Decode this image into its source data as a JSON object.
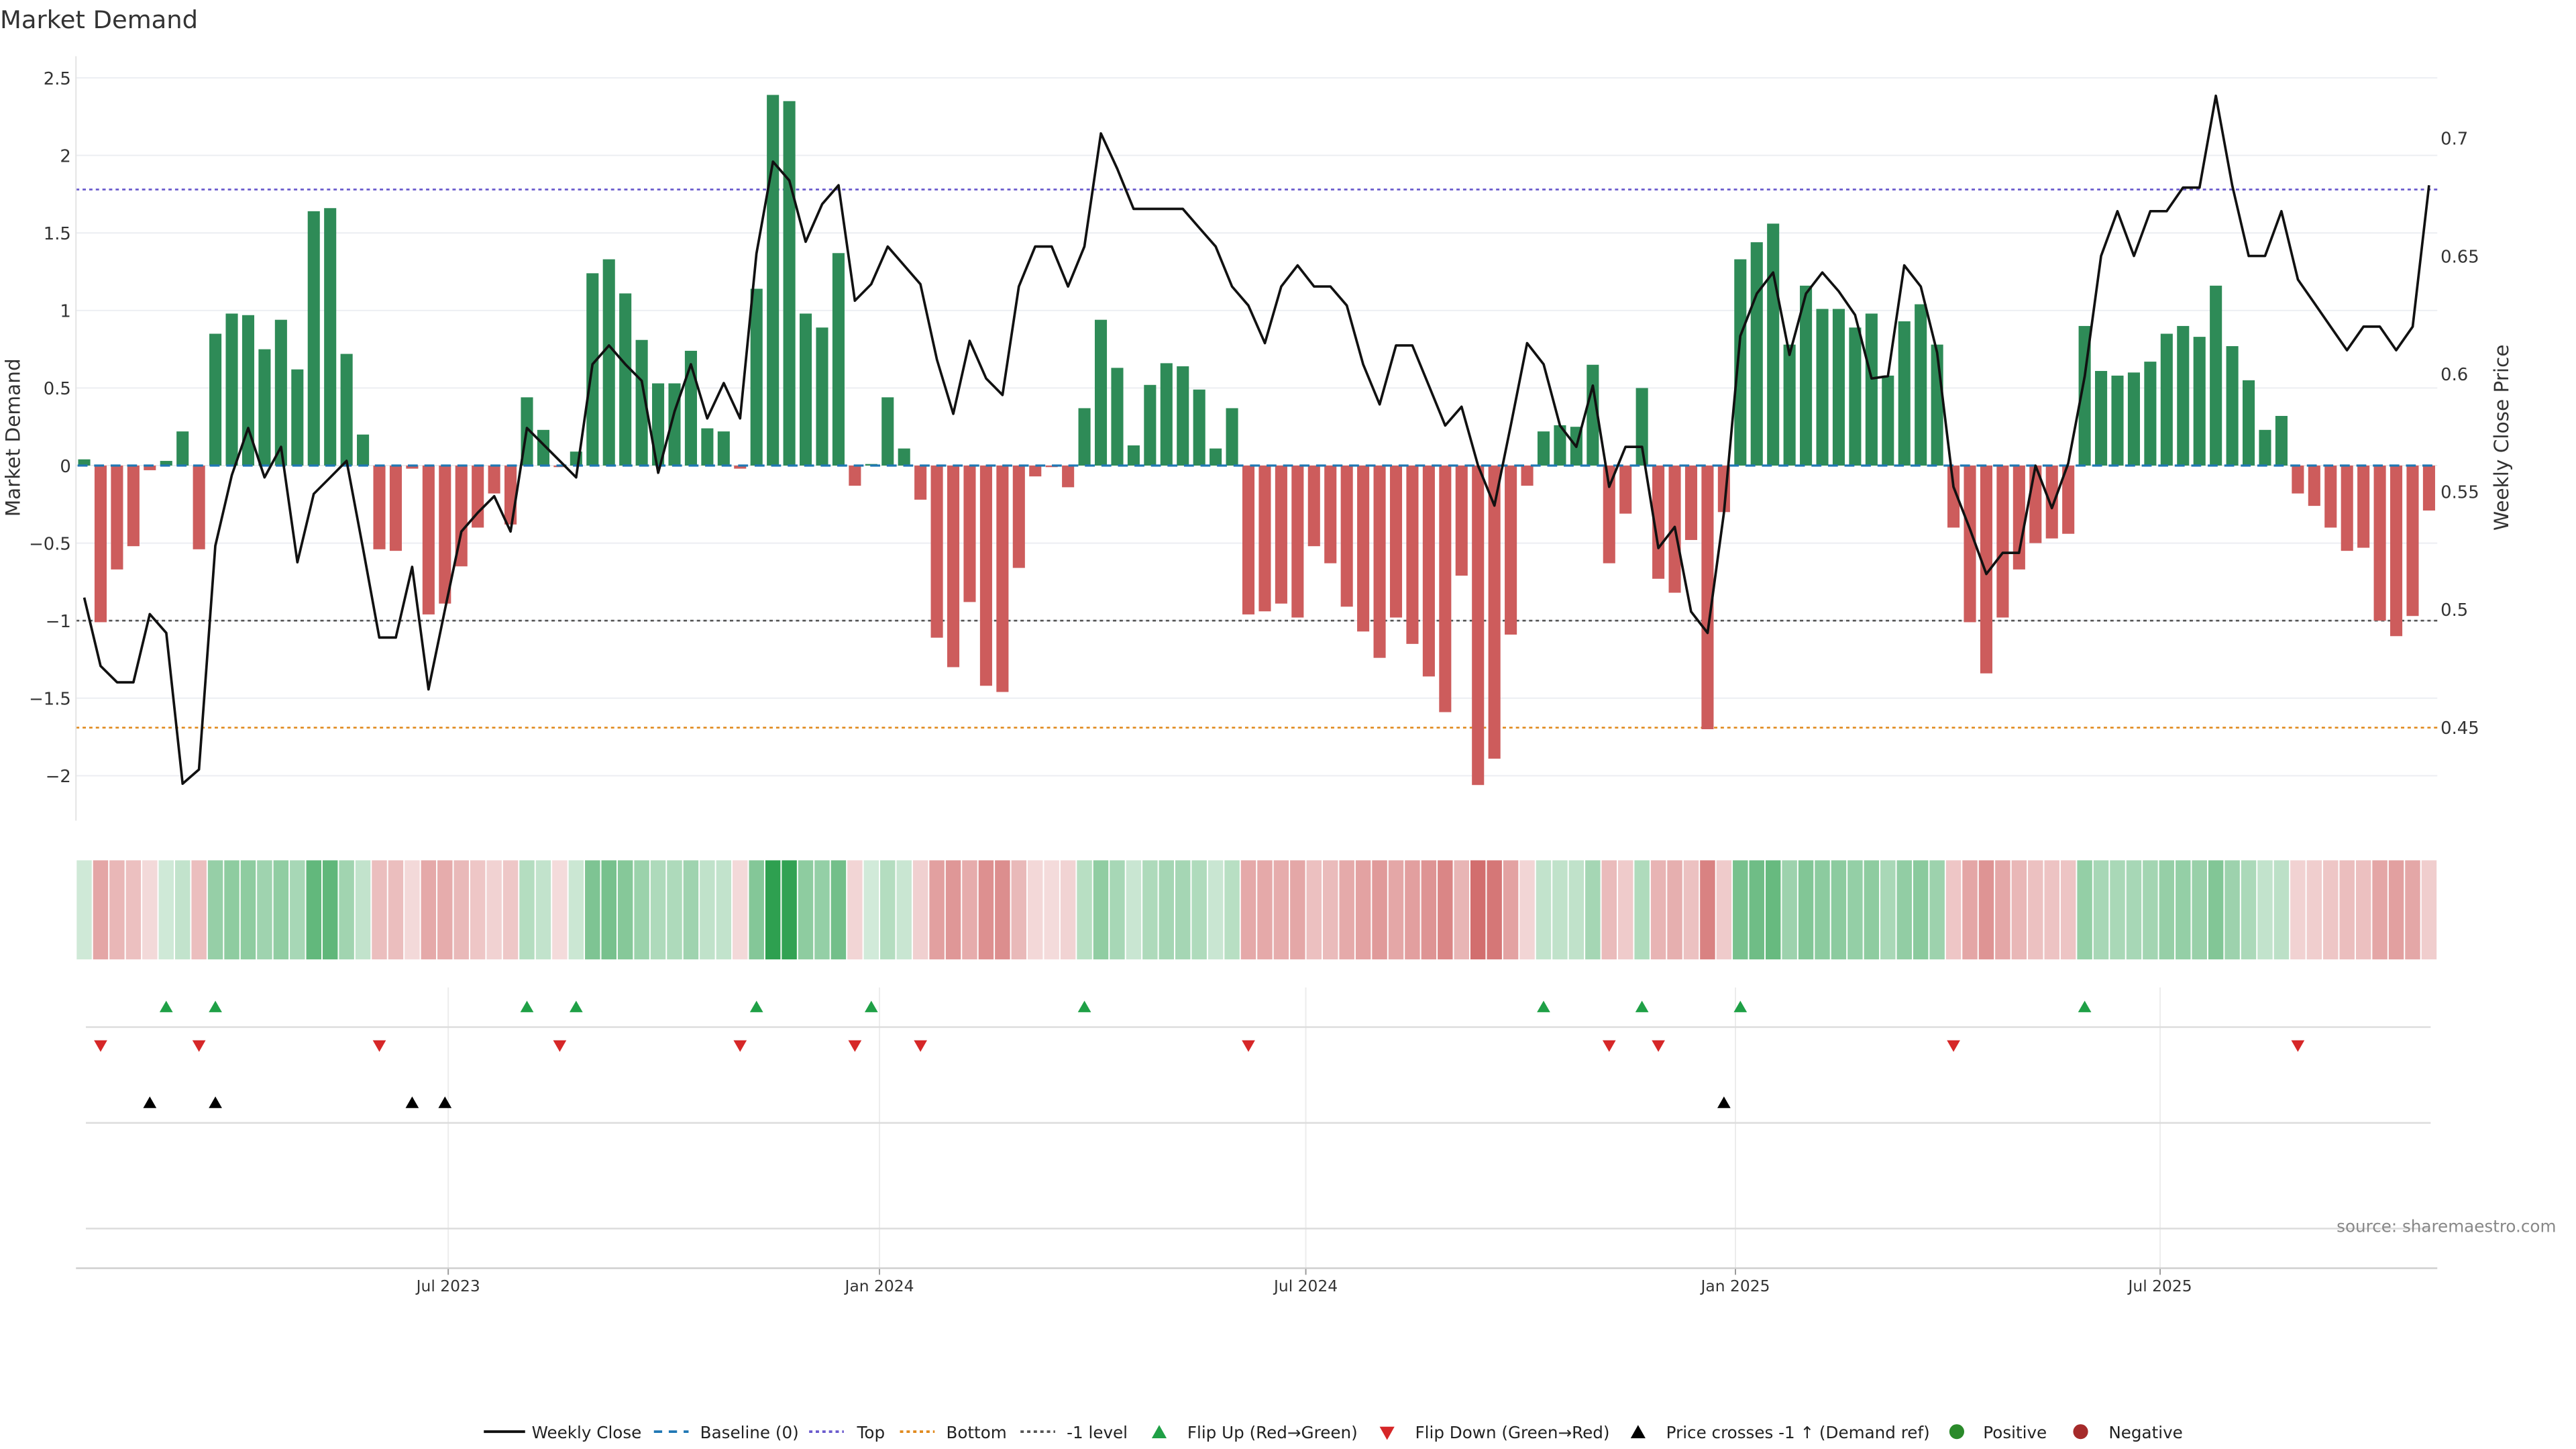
{
  "chart_data": {
    "type": "bar",
    "title": "Market Demand",
    "ylabel": "Market Demand",
    "y2label": "Weekly Close Price",
    "ylim": [
      -2.29,
      2.64
    ],
    "y2lim": [
      0.4103,
      0.7348
    ],
    "yticks": [
      -2,
      -1.5,
      -1,
      -0.5,
      0,
      0.5,
      1,
      1.5,
      2,
      2.5
    ],
    "ytick_labels": [
      "−2",
      "−1.5",
      "−1",
      "−0.5",
      "0",
      "0.5",
      "1",
      "1.5",
      "2",
      "2.5"
    ],
    "y2ticks": [
      0.45,
      0.5,
      0.55,
      0.6,
      0.65,
      0.7
    ],
    "y2tick_labels": [
      "0.45",
      "0.5",
      "0.55",
      "0.6",
      "0.65",
      "0.7"
    ],
    "x_unit": "week index (weekly bars, ~Feb 2023 to Oct 2025)",
    "xticks": [
      {
        "week": 22.2,
        "label": "Jul 2023"
      },
      {
        "week": 48.5,
        "label": "Jan 2024"
      },
      {
        "week": 74.5,
        "label": "Jul 2024"
      },
      {
        "week": 100.7,
        "label": "Jan 2025"
      },
      {
        "week": 126.6,
        "label": "Jul 2025"
      }
    ],
    "grid": true,
    "legend_placement": "bottom-center",
    "reference_lines": {
      "baseline": 0,
      "top": 1.78,
      "bottom": -1.69,
      "minus1": -1
    },
    "series": [
      {
        "name": "Market Demand",
        "type": "bar",
        "axis": "left",
        "values": [
          0.04,
          -1.01,
          -0.67,
          -0.52,
          -0.03,
          0.03,
          0.22,
          -0.54,
          0.85,
          0.98,
          0.97,
          0.75,
          0.94,
          0.62,
          1.64,
          1.66,
          0.72,
          0.2,
          -0.54,
          -0.55,
          -0.02,
          -0.96,
          -0.89,
          -0.65,
          -0.4,
          -0.18,
          -0.38,
          0.44,
          0.23,
          -0.01,
          0.09,
          1.24,
          1.33,
          1.11,
          0.81,
          0.53,
          0.53,
          0.74,
          0.24,
          0.22,
          -0.02,
          1.14,
          2.39,
          2.35,
          0.98,
          0.89,
          1.37,
          -0.13,
          0.01,
          0.44,
          0.11,
          -0.22,
          -1.11,
          -1.3,
          -0.88,
          -1.42,
          -1.46,
          -0.66,
          -0.07,
          -0.01,
          -0.14,
          0.37,
          0.94,
          0.63,
          0.13,
          0.52,
          0.66,
          0.64,
          0.49,
          0.11,
          0.37,
          -0.96,
          -0.94,
          -0.89,
          -0.98,
          -0.52,
          -0.63,
          -0.91,
          -1.07,
          -1.24,
          -0.98,
          -1.15,
          -1.36,
          -1.59,
          -0.71,
          -2.06,
          -1.89,
          -1.09,
          -0.13,
          0.22,
          0.26,
          0.25,
          0.65,
          -0.63,
          -0.31,
          0.5,
          -0.73,
          -0.82,
          -0.48,
          -1.7,
          -0.3,
          1.33,
          1.44,
          1.56,
          0.78,
          1.16,
          1.01,
          1.01,
          0.89,
          0.98,
          0.58,
          0.93,
          1.04,
          0.78,
          -0.4,
          -1.01,
          -1.34,
          -0.98,
          -0.67,
          -0.5,
          -0.47,
          -0.44,
          0.9,
          0.61,
          0.58,
          0.6,
          0.67,
          0.85,
          0.9,
          0.83,
          1.16,
          0.77,
          0.55,
          0.23,
          0.32,
          -0.18,
          -0.26,
          -0.4,
          -0.55,
          -0.53,
          -1.0,
          -1.1,
          -0.97,
          -0.29
        ]
      },
      {
        "name": "Weekly Close",
        "type": "line",
        "axis": "right",
        "values": [
          0.505,
          0.476,
          0.469,
          0.469,
          0.498,
          0.49,
          0.426,
          0.432,
          0.527,
          0.557,
          0.577,
          0.556,
          0.569,
          0.52,
          0.549,
          0.556,
          0.563,
          0.526,
          0.488,
          0.488,
          0.518,
          0.466,
          0.5,
          0.533,
          0.541,
          0.548,
          0.533,
          0.577,
          0.57,
          0.563,
          0.556,
          0.604,
          0.612,
          0.604,
          0.597,
          0.558,
          0.584,
          0.604,
          0.581,
          0.596,
          0.581,
          0.651,
          0.69,
          0.682,
          0.656,
          0.672,
          0.68,
          0.631,
          0.638,
          0.654,
          0.646,
          0.638,
          0.606,
          0.583,
          0.614,
          0.598,
          0.591,
          0.637,
          0.654,
          0.654,
          0.637,
          0.654,
          0.702,
          0.687,
          0.67,
          0.67,
          0.67,
          0.67,
          0.662,
          0.654,
          0.637,
          0.629,
          0.613,
          0.637,
          0.646,
          0.637,
          0.637,
          0.629,
          0.604,
          0.587,
          0.612,
          0.612,
          0.595,
          0.578,
          0.586,
          0.561,
          0.544,
          0.578,
          0.613,
          0.604,
          0.578,
          0.569,
          0.595,
          0.552,
          0.569,
          0.569,
          0.526,
          0.535,
          0.499,
          0.49,
          0.541,
          0.616,
          0.634,
          0.643,
          0.608,
          0.634,
          0.643,
          0.635,
          0.625,
          0.598,
          0.599,
          0.646,
          0.637,
          0.609,
          0.552,
          0.534,
          0.515,
          0.524,
          0.524,
          0.561,
          0.543,
          0.562,
          0.599,
          0.65,
          0.669,
          0.65,
          0.669,
          0.669,
          0.679,
          0.679,
          0.718,
          0.68,
          0.65,
          0.65,
          0.669,
          0.64,
          0.63,
          0.62,
          0.61,
          0.62,
          0.62,
          0.61,
          0.62,
          0.68
        ]
      }
    ],
    "price_cross_up_indices": [
      4,
      8,
      20,
      22,
      100
    ],
    "legend": [
      {
        "key": "close",
        "label": "Weekly Close"
      },
      {
        "key": "baseline",
        "label": "Baseline (0)"
      },
      {
        "key": "top",
        "label": "Top"
      },
      {
        "key": "bottom",
        "label": "Bottom"
      },
      {
        "key": "minus1",
        "label": "-1 level"
      },
      {
        "key": "flipup",
        "label": "Flip Up (Red→Green)"
      },
      {
        "key": "flipdown",
        "label": "Flip Down (Green→Red)"
      },
      {
        "key": "cross",
        "label": "Price crosses -1 ↑ (Demand ref)"
      },
      {
        "key": "positive",
        "label": "Positive"
      },
      {
        "key": "negative",
        "label": "Negative"
      }
    ],
    "source": "source: sharemaestro.com"
  },
  "colors": {
    "positive": "#2e8b57",
    "negative": "#cd5c5c",
    "close": "#111111",
    "baseline": "#1f77b4",
    "top": "#6a5acd",
    "bottom": "#e08a1e",
    "minus1": "#555555",
    "flipup": "#1fa046",
    "flipdown": "#d62728",
    "cross": "#000000",
    "heat_pos": "46,160,80",
    "heat_neg": "205,92,92"
  }
}
